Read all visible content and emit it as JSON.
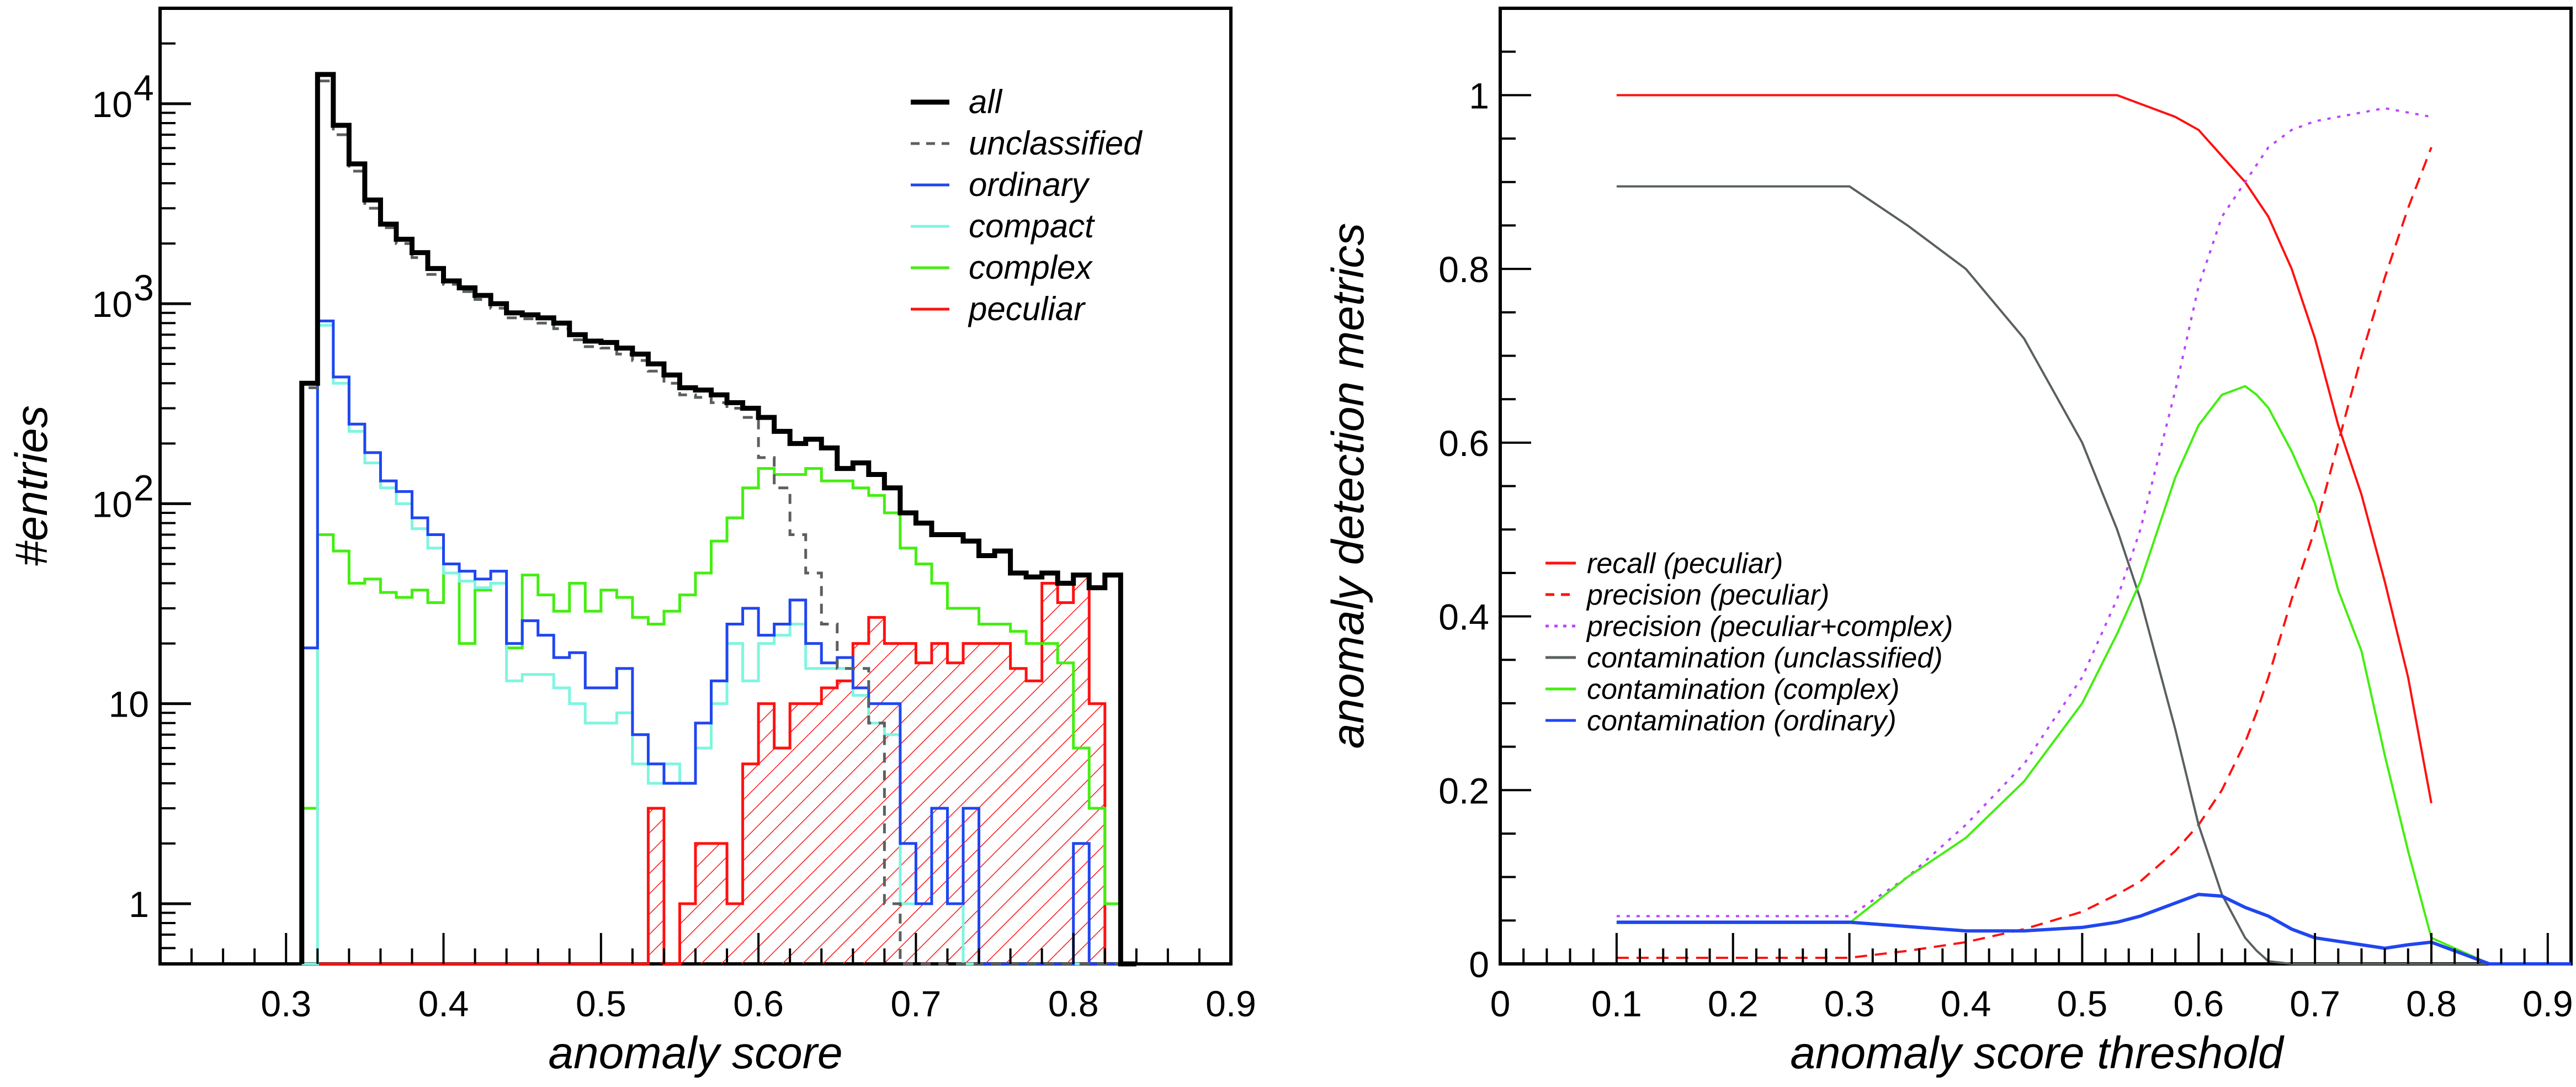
{
  "chart_data": [
    {
      "type": "histogram",
      "title": "",
      "xlabel": "anomaly score",
      "ylabel": "#entries",
      "xlim": [
        0.22,
        0.9
      ],
      "ylim": [
        0.5,
        30000
      ],
      "yscale": "log",
      "bin_width": 0.01,
      "x_tick_labels": [
        "0.3",
        "0.4",
        "0.5",
        "0.6",
        "0.7",
        "0.8",
        "0.9"
      ],
      "x_ticks": [
        0.3,
        0.4,
        0.5,
        0.6,
        0.7,
        0.8,
        0.9
      ],
      "y_tick_labels": [
        {
          "value": 1,
          "base": "1",
          "exp": ""
        },
        {
          "value": 10,
          "base": "10",
          "exp": ""
        },
        {
          "value": 100,
          "base": "10",
          "exp": "2"
        },
        {
          "value": 1000,
          "base": "10",
          "exp": "3"
        },
        {
          "value": 10000,
          "base": "10",
          "exp": "4"
        }
      ],
      "legend_position": "top-right",
      "x_bin_edges_start": 0.31,
      "series": [
        {
          "name": "all",
          "color": "#000000",
          "style": "solid-thick",
          "values": [
            400,
            14000,
            7800,
            5000,
            3300,
            2500,
            2100,
            1800,
            1500,
            1300,
            1200,
            1100,
            1000,
            900,
            880,
            850,
            800,
            700,
            650,
            640,
            600,
            560,
            500,
            440,
            380,
            370,
            350,
            320,
            300,
            270,
            230,
            200,
            210,
            190,
            150,
            160,
            140,
            120,
            90,
            80,
            70,
            70,
            65,
            55,
            58,
            45,
            43,
            45,
            40,
            44,
            38,
            44,
            0
          ]
        },
        {
          "name": "unclassified",
          "color": "#5a6060",
          "style": "dashed",
          "values": [
            380,
            13000,
            7000,
            4600,
            3000,
            2400,
            2000,
            1700,
            1400,
            1250,
            1150,
            1050,
            950,
            850,
            840,
            800,
            750,
            660,
            610,
            600,
            560,
            520,
            460,
            400,
            350,
            340,
            320,
            300,
            270,
            170,
            120,
            70,
            45,
            25,
            15,
            15,
            8,
            1,
            0,
            0,
            0,
            0,
            0,
            0,
            0,
            0,
            0,
            0,
            0,
            0,
            0,
            0,
            0
          ]
        },
        {
          "name": "ordinary",
          "color": "#2046f0",
          "style": "solid",
          "values": [
            19,
            820,
            430,
            250,
            180,
            130,
            115,
            85,
            70,
            50,
            46,
            42,
            46,
            20,
            26,
            22,
            17,
            18,
            12,
            12,
            15,
            7,
            5,
            4,
            4,
            8,
            13,
            25,
            30,
            22,
            25,
            33,
            20,
            16,
            17,
            12,
            10,
            10,
            2,
            1,
            3,
            1,
            3,
            0,
            0,
            0,
            0,
            0,
            0,
            2,
            0,
            0,
            0
          ]
        },
        {
          "name": "compact",
          "color": "#7ff5e0",
          "style": "solid",
          "values": [
            0,
            780,
            400,
            230,
            160,
            120,
            100,
            75,
            60,
            45,
            41,
            38,
            40,
            13,
            14,
            14,
            12,
            10,
            8,
            8,
            9,
            5,
            4,
            5,
            4,
            6,
            10,
            20,
            13,
            20,
            22,
            25,
            15,
            15,
            15,
            11,
            8,
            7,
            1,
            1,
            3,
            1,
            0,
            0,
            0,
            0,
            0,
            0,
            0,
            0,
            0,
            0,
            0
          ]
        },
        {
          "name": "complex",
          "color": "#44ee11",
          "style": "solid",
          "values": [
            3,
            70,
            58,
            40,
            42,
            36,
            34,
            37,
            32,
            45,
            20,
            37,
            40,
            19,
            44,
            35,
            29,
            40,
            29,
            37,
            34,
            27,
            25,
            29,
            35,
            45,
            65,
            85,
            120,
            150,
            140,
            140,
            150,
            130,
            130,
            120,
            110,
            90,
            60,
            50,
            40,
            30,
            30,
            25,
            25,
            23,
            20,
            20,
            16,
            6,
            3,
            1,
            0
          ]
        },
        {
          "name": "peculiar",
          "color": "#ff1111",
          "style": "hatched",
          "values": [
            0,
            0,
            0,
            0,
            0,
            0,
            0,
            0,
            0,
            0,
            0,
            0,
            0,
            0,
            0,
            0,
            0,
            0,
            0,
            0,
            0,
            0,
            3,
            0,
            1,
            2,
            2,
            1,
            5,
            10,
            6,
            10,
            10,
            12,
            13,
            20,
            27,
            20,
            20,
            16,
            20,
            16,
            20,
            20,
            20,
            15,
            13,
            40,
            32,
            44,
            10,
            0,
            0
          ]
        }
      ]
    },
    {
      "type": "line",
      "title": "",
      "xlabel": "anomaly score threshold",
      "ylabel": "anomaly detection metrics",
      "xlim": [
        0,
        0.92
      ],
      "ylim": [
        0,
        1.1
      ],
      "x_tick_labels": [
        "0",
        "0.1",
        "0.2",
        "0.3",
        "0.4",
        "0.5",
        "0.6",
        "0.7",
        "0.8",
        "0.9"
      ],
      "x_ticks": [
        0,
        0.1,
        0.2,
        0.3,
        0.4,
        0.5,
        0.6,
        0.7,
        0.8,
        0.9
      ],
      "y_tick_labels": [
        "0",
        "0.2",
        "0.4",
        "0.6",
        "0.8",
        "1"
      ],
      "y_ticks": [
        0,
        0.2,
        0.4,
        0.6,
        0.8,
        1.0
      ],
      "legend_position": "middle-left",
      "x": [
        0.1,
        0.3,
        0.35,
        0.4,
        0.45,
        0.5,
        0.53,
        0.55,
        0.58,
        0.6,
        0.62,
        0.64,
        0.65,
        0.66,
        0.68,
        0.7,
        0.72,
        0.74,
        0.76,
        0.78,
        0.8,
        0.85,
        0.92
      ],
      "series": [
        {
          "name": "recall (peculiar)",
          "color": "#ff1111",
          "style": "solid",
          "values": [
            1.0,
            1.0,
            1.0,
            1.0,
            1.0,
            1.0,
            1.0,
            0.99,
            0.975,
            0.96,
            0.93,
            0.9,
            0.88,
            0.86,
            0.8,
            0.72,
            0.62,
            0.54,
            0.44,
            0.33,
            0.185,
            null,
            null
          ]
        },
        {
          "name": "precision (peculiar)",
          "color": "#ff1111",
          "style": "dashed",
          "values": [
            0.007,
            0.007,
            0.015,
            0.025,
            0.04,
            0.06,
            0.08,
            0.095,
            0.13,
            0.16,
            0.2,
            0.255,
            0.29,
            0.33,
            0.42,
            0.5,
            0.6,
            0.7,
            0.79,
            0.87,
            0.94,
            null,
            null
          ]
        },
        {
          "name": "precision (peculiar+complex)",
          "color": "#bb44ff",
          "style": "dotted",
          "values": [
            0.055,
            0.055,
            0.1,
            0.16,
            0.23,
            0.33,
            0.42,
            0.5,
            0.66,
            0.78,
            0.86,
            0.9,
            0.92,
            0.94,
            0.96,
            0.97,
            0.975,
            0.98,
            0.985,
            0.98,
            0.975,
            null,
            null
          ]
        },
        {
          "name": "contamination (unclassified)",
          "color": "#5a6060",
          "style": "solid",
          "values": [
            0.895,
            0.895,
            0.85,
            0.8,
            0.72,
            0.6,
            0.5,
            0.42,
            0.27,
            0.16,
            0.08,
            0.03,
            0.015,
            0.003,
            0.0,
            0.0,
            0.0,
            0.0,
            0.0,
            0.0,
            0.0,
            0.0,
            0.0
          ]
        },
        {
          "name": "contamination (complex)",
          "color": "#44ee11",
          "style": "solid",
          "values": [
            0.047,
            0.047,
            0.1,
            0.145,
            0.21,
            0.3,
            0.38,
            0.44,
            0.56,
            0.62,
            0.655,
            0.665,
            0.655,
            0.64,
            0.59,
            0.53,
            0.43,
            0.36,
            0.24,
            0.13,
            0.03,
            0.0,
            0.0
          ]
        },
        {
          "name": "contamination (ordinary)",
          "color": "#2046f0",
          "style": "solid",
          "values": [
            0.048,
            0.048,
            0.043,
            0.038,
            0.038,
            0.042,
            0.048,
            0.055,
            0.07,
            0.08,
            0.078,
            0.065,
            0.06,
            0.055,
            0.04,
            0.03,
            0.026,
            0.022,
            0.018,
            0.022,
            0.025,
            0.0,
            0.0
          ]
        }
      ]
    }
  ]
}
